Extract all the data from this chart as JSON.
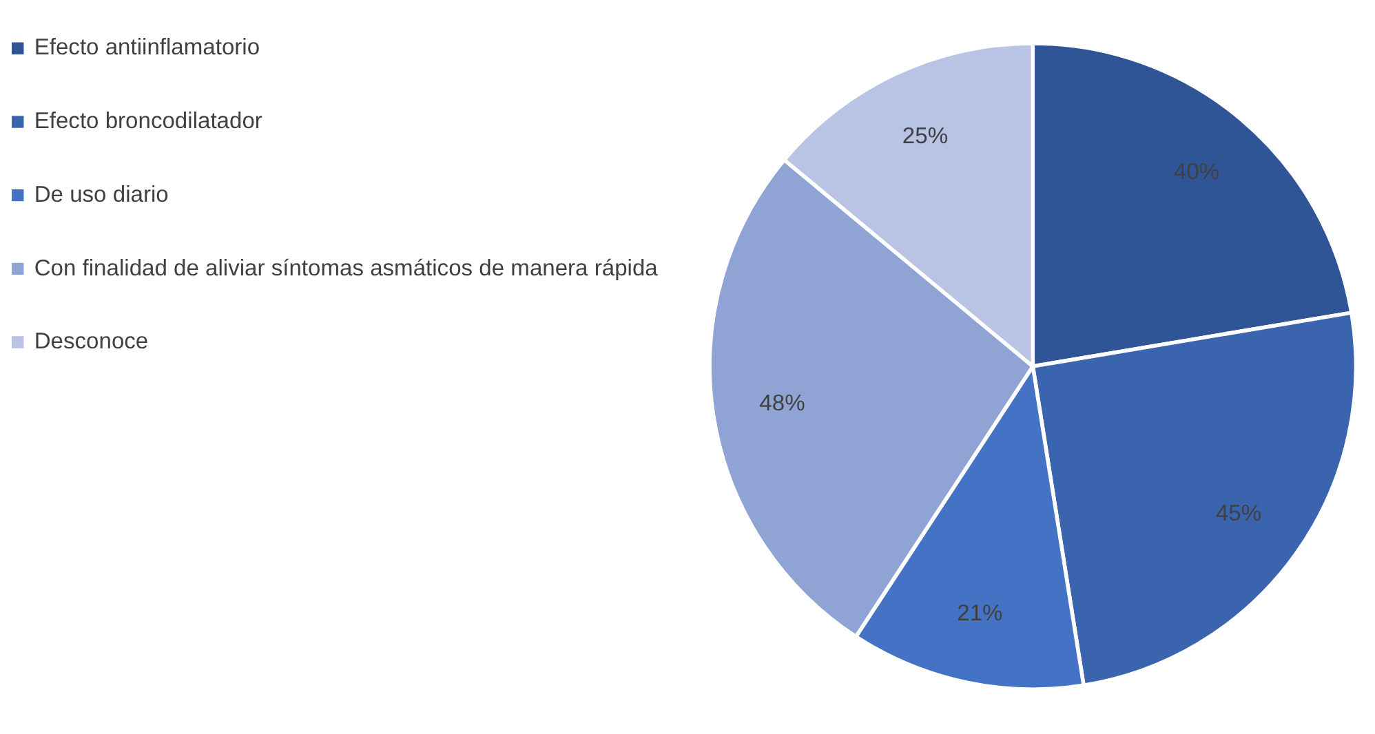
{
  "chart_data": {
    "type": "pie",
    "categories": [
      "Efecto antiinflamatorio",
      "Efecto broncodilatador",
      "De uso diario",
      "Con finalidad de aliviar síntomas asmáticos de manera rápida",
      "Desconoce"
    ],
    "values": [
      40,
      45,
      21,
      48,
      25
    ],
    "colors": [
      "#2f5597",
      "#3a64ad",
      "#4472c4",
      "#8fa4d4",
      "#b9c3e3"
    ],
    "value_labels": [
      "40%",
      "45%",
      "21%",
      "48%",
      "25%"
    ],
    "legend": "left"
  }
}
